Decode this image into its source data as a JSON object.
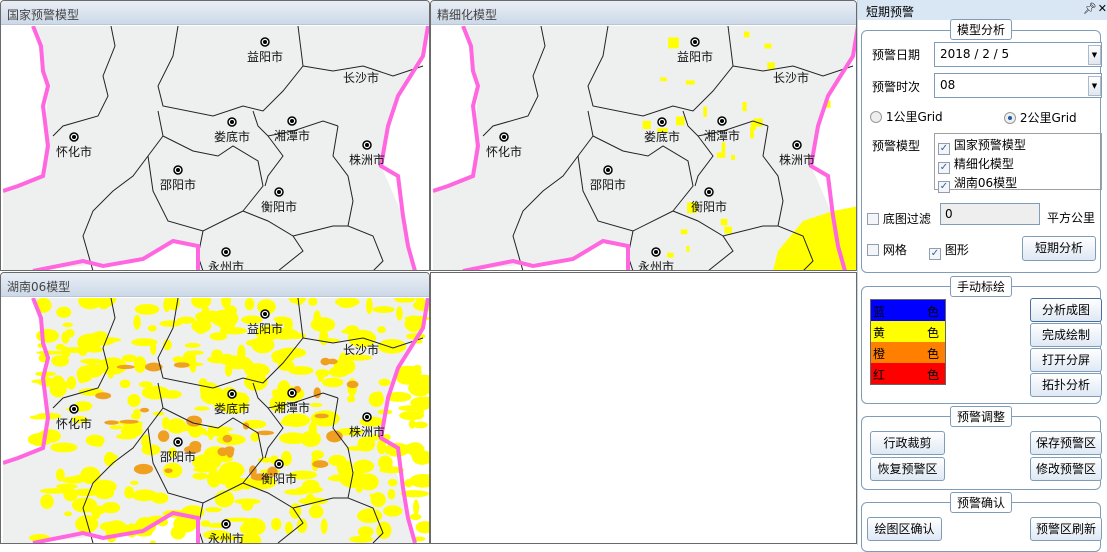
{
  "panels": [
    {
      "title": "国家预警模型",
      "overlay": "none"
    },
    {
      "title": "精细化模型",
      "overlay": "sparse"
    },
    {
      "title": "湖南06模型",
      "overlay": "dense"
    }
  ],
  "cities": [
    "益阳市",
    "长沙市",
    "娄底市",
    "湘潭市",
    "怀化市",
    "株洲市",
    "邵阳市",
    "衡阳市",
    "永州市"
  ],
  "colors": {
    "map_fill": "#eeefef",
    "province_border": "#ff66e0",
    "warning_yellow": "#ffff00",
    "warning_orange": "#f0a020"
  },
  "sidebar": {
    "title": "短期预警",
    "pin_icon": "pin-icon",
    "close_icon": "close-icon",
    "model_analysis": {
      "title": "模型分析",
      "date_label": "预警日期",
      "date_value": "2018 / 2 / 5",
      "time_label": "预警时次",
      "time_value": "08",
      "grid_options": [
        {
          "label": "1公里Grid",
          "selected": false
        },
        {
          "label": "2公里Grid",
          "selected": true
        }
      ],
      "model_label": "预警模型",
      "models": [
        {
          "label": "国家预警模型",
          "checked": true
        },
        {
          "label": "精细化模型",
          "checked": true
        },
        {
          "label": "湖南06模型",
          "checked": true
        }
      ],
      "filter_label": "底图过滤",
      "filter_checked": false,
      "filter_value": "0",
      "filter_unit": "平方公里",
      "grid_label": "网格",
      "grid_checked": false,
      "shape_label": "图形",
      "shape_checked": true,
      "analyze_button": "短期分析"
    },
    "manual_draw": {
      "title": "手动标绘",
      "swatches": [
        {
          "left": "蓝",
          "right": "色",
          "color": "#0000ff"
        },
        {
          "left": "黄",
          "right": "色",
          "color": "#ffff00"
        },
        {
          "left": "橙",
          "right": "色",
          "color": "#ff8000"
        },
        {
          "left": "红",
          "right": "色",
          "color": "#ff0000"
        }
      ],
      "buttons": [
        "分析成图",
        "完成绘制",
        "打开分屏",
        "拓扑分析"
      ]
    },
    "adjust": {
      "title": "预警调整",
      "buttons": [
        "行政裁剪",
        "保存预警区",
        "恢复预警区",
        "修改预警区"
      ]
    },
    "confirm": {
      "title": "预警确认",
      "buttons": [
        "绘图区确认",
        "预警区刷新"
      ]
    }
  }
}
